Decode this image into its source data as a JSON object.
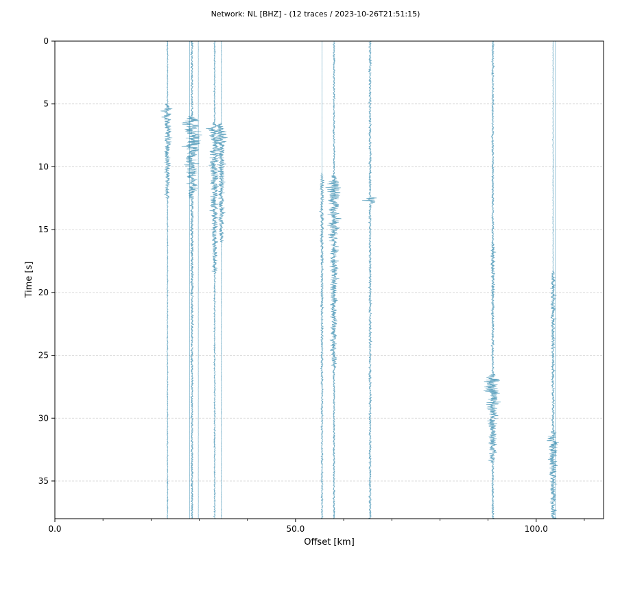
{
  "chart_data": {
    "type": "line",
    "title": "Network: NL [BHZ] - (12 traces / 2023-10-26T21:51:15)",
    "xlabel": "Offset [km]",
    "ylabel": "Time [s]",
    "xlim": [
      0,
      114
    ],
    "ylim": [
      0,
      38
    ],
    "y_inverted": true,
    "x_ticks": [
      0,
      50,
      100
    ],
    "x_tick_labels": [
      "0.0",
      "50.0",
      "100.0"
    ],
    "x_minor_ticks": [
      10,
      20,
      30,
      40,
      60,
      70,
      80,
      90,
      110
    ],
    "y_ticks": [
      0,
      5,
      10,
      15,
      20,
      25,
      30,
      35
    ],
    "y_tick_labels": [
      "0",
      "5",
      "10",
      "15",
      "20",
      "25",
      "30",
      "35"
    ],
    "grid": "horizontal-dashed",
    "trace_color": "#2e86ab",
    "traces": [
      {
        "offset": 23.4,
        "base_amp": 0.25,
        "noise": 0.12,
        "events": [
          {
            "t0": 5.0,
            "t1": 12.5,
            "amp": 2.6
          }
        ]
      },
      {
        "offset": 28.0,
        "base_amp": 0.04,
        "noise": 0.02,
        "events": []
      },
      {
        "offset": 28.5,
        "base_amp": 0.5,
        "noise": 0.25,
        "events": [
          {
            "t0": 6.0,
            "t1": 12.5,
            "amp": 5.5
          },
          {
            "t0": 12.5,
            "t1": 38.0,
            "amp": 0.9
          }
        ]
      },
      {
        "offset": 29.8,
        "base_amp": 0.05,
        "noise": 0.02,
        "events": []
      },
      {
        "offset": 33.2,
        "base_amp": 0.35,
        "noise": 0.15,
        "events": [
          {
            "t0": 6.5,
            "t1": 18.5,
            "amp": 3.2
          }
        ]
      },
      {
        "offset": 34.6,
        "base_amp": 0.12,
        "noise": 0.05,
        "events": [
          {
            "t0": 6.5,
            "t1": 16.0,
            "amp": 2.8
          }
        ]
      },
      {
        "offset": 55.5,
        "base_amp": 0.05,
        "noise": 0.02,
        "events": [
          {
            "t0": 10.5,
            "t1": 38.0,
            "amp": 1.0
          }
        ]
      },
      {
        "offset": 58.0,
        "base_amp": 0.4,
        "noise": 0.2,
        "events": [
          {
            "t0": 10.7,
            "t1": 26.0,
            "amp": 3.5
          }
        ]
      },
      {
        "offset": 65.5,
        "base_amp": 0.55,
        "noise": 0.3,
        "events": [
          {
            "t0": 12.4,
            "t1": 12.9,
            "amp": 5.5
          }
        ]
      },
      {
        "offset": 91.0,
        "base_amp": 0.5,
        "noise": 0.25,
        "events": [
          {
            "t0": 16.0,
            "t1": 26.0,
            "amp": 1.3
          },
          {
            "t0": 26.5,
            "t1": 33.5,
            "amp": 4.5
          }
        ]
      },
      {
        "offset": 103.5,
        "base_amp": 0.15,
        "noise": 0.08,
        "events": [
          {
            "t0": 18.3,
            "t1": 31.0,
            "amp": 1.5
          },
          {
            "t0": 31.0,
            "t1": 38.0,
            "amp": 3.2
          }
        ]
      },
      {
        "offset": 104.0,
        "base_amp": 0.0,
        "noise": 0.0,
        "events": []
      }
    ]
  }
}
